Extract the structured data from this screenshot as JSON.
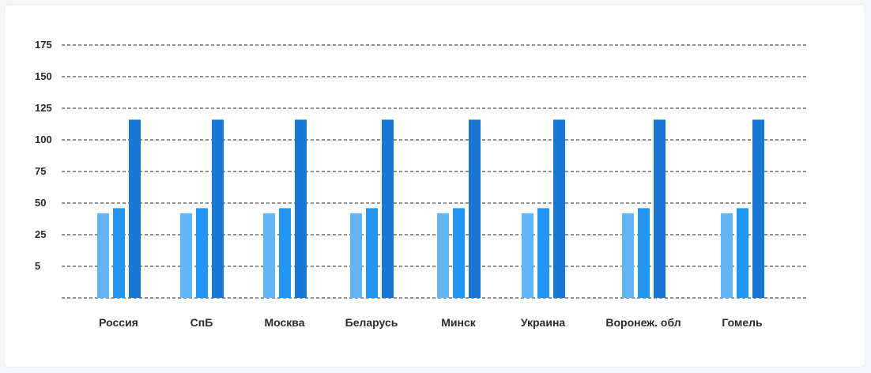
{
  "chart_data": {
    "type": "bar",
    "categories": [
      "Россия",
      "СпБ",
      "Москва",
      "Беларусь",
      "Минск",
      "Украина",
      "Воронеж. обл",
      "Гомель"
    ],
    "series": [
      {
        "values": [
          67,
          67,
          67,
          67,
          67,
          67,
          67,
          67
        ],
        "color": "#64b5f6"
      },
      {
        "values": [
          71,
          71,
          71,
          71,
          71,
          71,
          71,
          71
        ],
        "color": "#2196f3"
      },
      {
        "values": [
          141,
          141,
          141,
          141,
          141,
          141,
          141,
          141
        ],
        "color": "#1976d2"
      }
    ],
    "y_ticks": [
      "175",
      "150",
      "125",
      "100",
      "75",
      "50",
      "25",
      "5"
    ],
    "grid": "dashed horizontal",
    "legend": "none"
  }
}
